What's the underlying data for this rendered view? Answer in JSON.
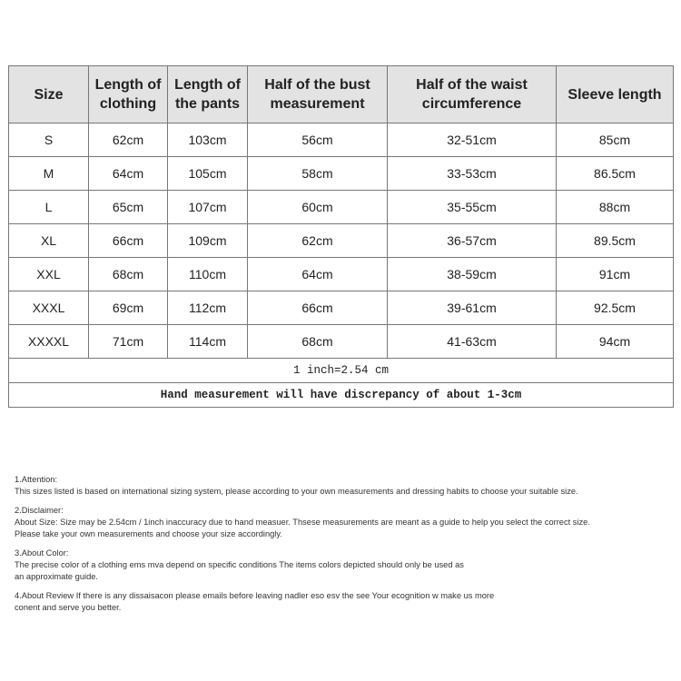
{
  "table": {
    "headers": [
      "Size",
      "Length of clothing",
      "Length of the pants",
      "Half of the bust measurement",
      "Half of the waist circumference",
      "Sleeve length"
    ],
    "rows": [
      [
        "S",
        "62cm",
        "103cm",
        "56cm",
        "32-51cm",
        "85cm"
      ],
      [
        "M",
        "64cm",
        "105cm",
        "58cm",
        "33-53cm",
        "86.5cm"
      ],
      [
        "L",
        "65cm",
        "107cm",
        "60cm",
        "35-55cm",
        "88cm"
      ],
      [
        "XL",
        "66cm",
        "109cm",
        "62cm",
        "36-57cm",
        "89.5cm"
      ],
      [
        "XXL",
        "68cm",
        "110cm",
        "64cm",
        "38-59cm",
        "91cm"
      ],
      [
        "XXXL",
        "69cm",
        "112cm",
        "66cm",
        "39-61cm",
        "92.5cm"
      ],
      [
        "XXXXL",
        "71cm",
        "114cm",
        "68cm",
        "41-63cm",
        "94cm"
      ]
    ],
    "conversion": "1 inch=2.54 cm",
    "discrepancy": "Hand measurement will have discrepancy of about 1-3cm"
  },
  "notes": [
    {
      "title": "1.Attention:",
      "lines": [
        "This sizes listed is based on international sizing system, please according to your own measurements and dressing habits to choose your suitable size."
      ]
    },
    {
      "title": "2.Disclaimer:",
      "lines": [
        "About Size: Size may be 2.54cm / 1inch inaccuracy due to hand measuer. Thsese measurements are meant as a guide to help you select the correct size.",
        "Please take your own measurements and choose your size accordingly."
      ]
    },
    {
      "title": "3.About Color:",
      "lines": [
        "The precise color of a clothing ems mva depend on specific conditions The items colors depicted should only be used as",
        "an approximate guide."
      ]
    },
    {
      "title": "",
      "lines": [
        "4.About Review If there is any dissaisacon please emails before leaving nadler eso esv the see Your ecognition w make us more",
        "conent and serve you better."
      ]
    }
  ]
}
